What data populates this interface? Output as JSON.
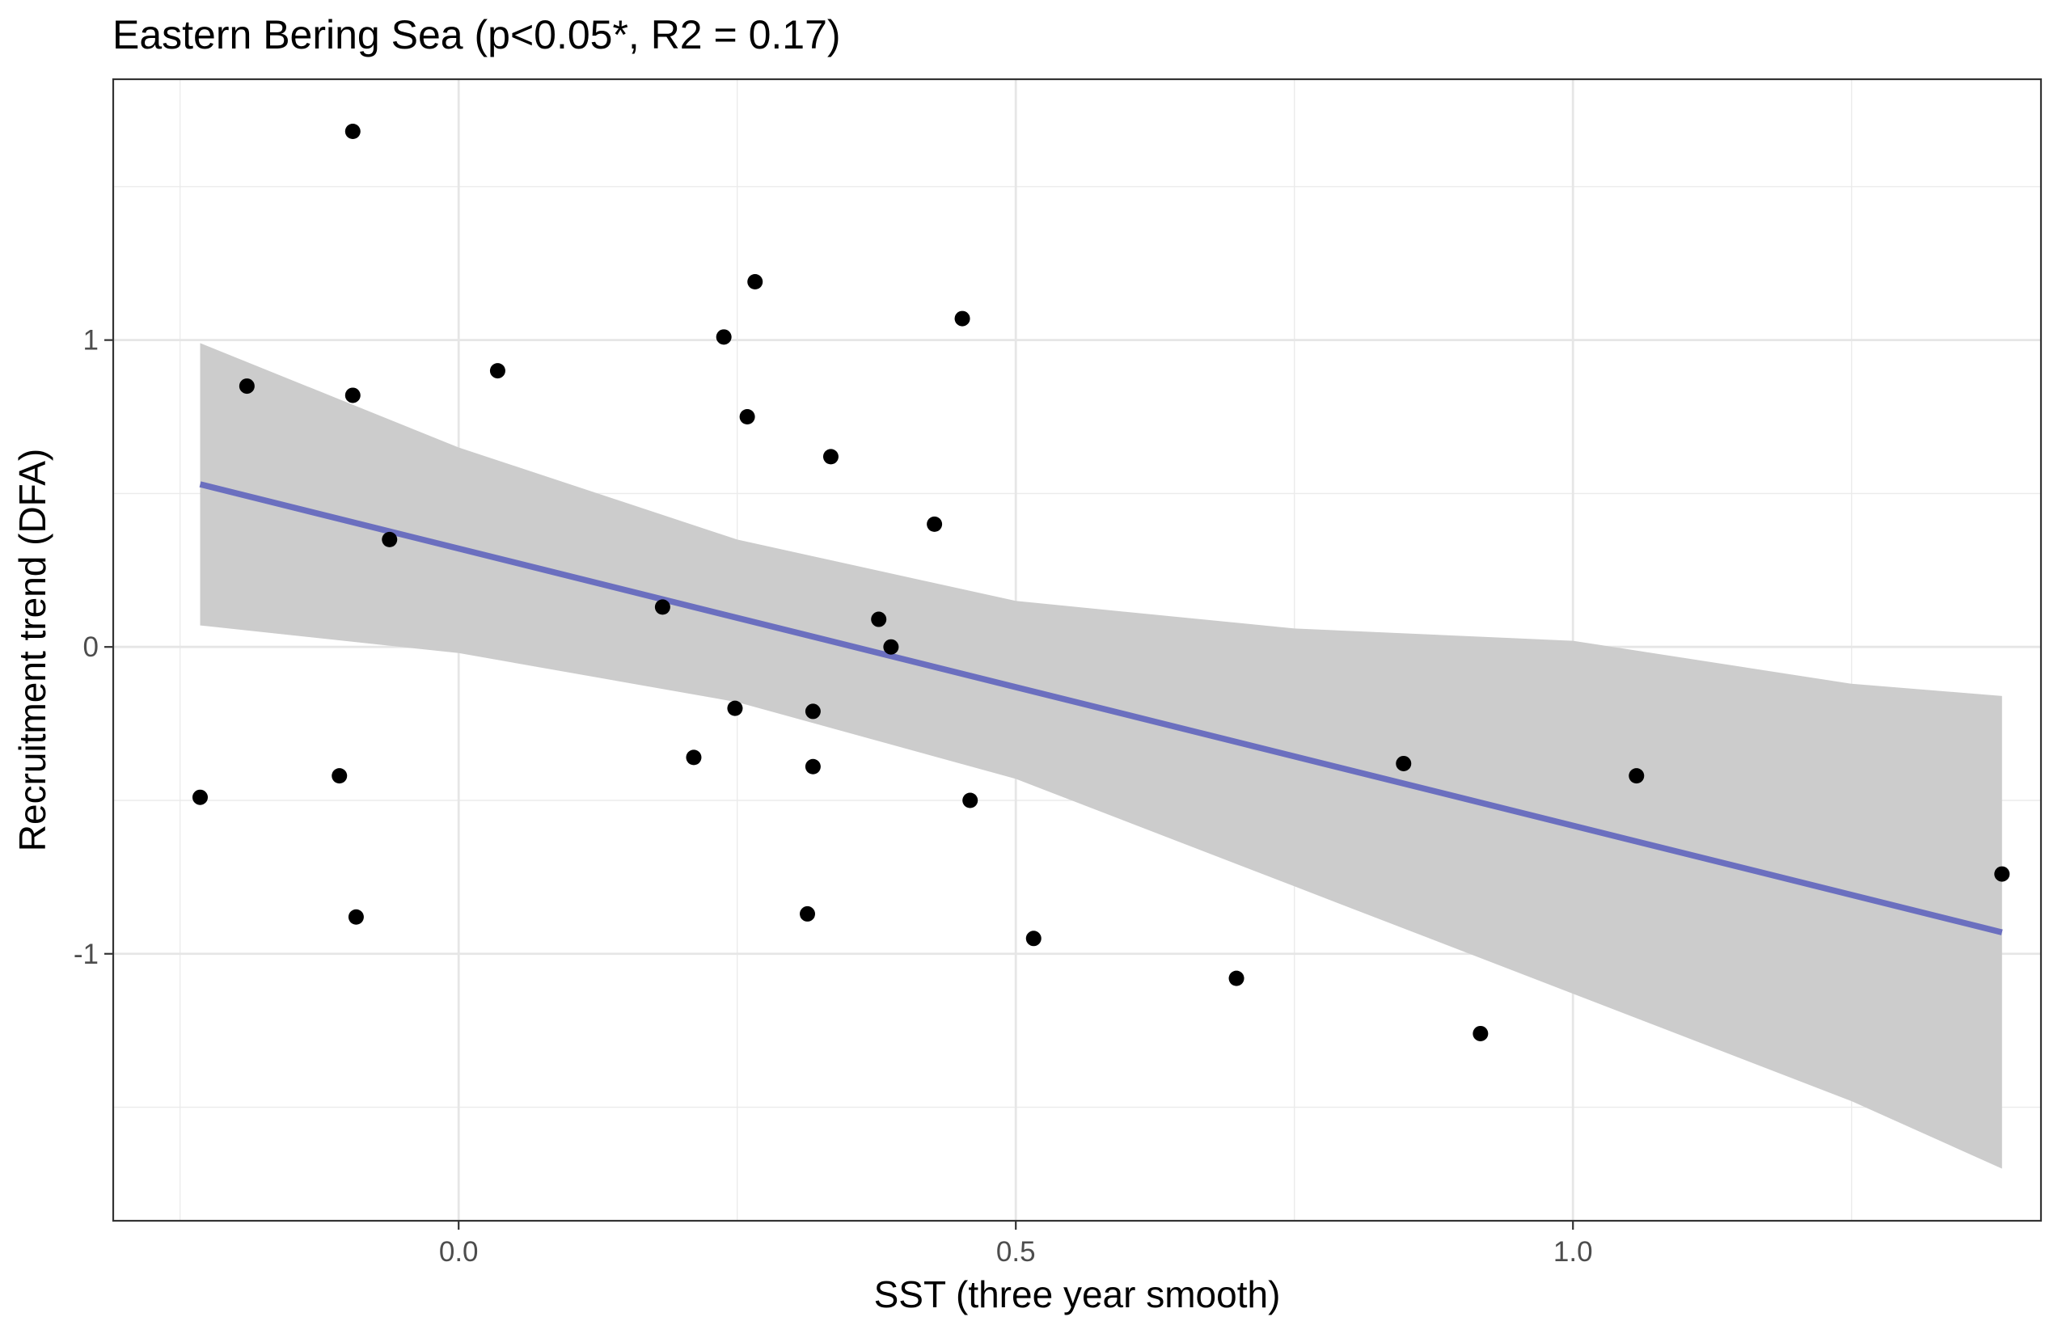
{
  "chart_data": {
    "type": "scatter",
    "title": "Eastern Bering Sea (p<0.05*, R2 = 0.17)",
    "xlabel": "SST (three year smooth)",
    "ylabel": "Recruitment trend (DFA)",
    "xlim": [
      -0.31,
      1.42
    ],
    "ylim": [
      -1.87,
      1.85
    ],
    "x_ticks": [
      0.0,
      0.5,
      1.0
    ],
    "x_tick_labels": [
      "0.0",
      "0.5",
      "1.0"
    ],
    "y_ticks": [
      -1,
      0,
      1
    ],
    "y_tick_labels": [
      "-1",
      "0",
      "1"
    ],
    "grid": true,
    "legend": "none",
    "points": [
      {
        "x": -0.095,
        "y": 1.68
      },
      {
        "x": -0.19,
        "y": 0.85
      },
      {
        "x": -0.095,
        "y": 0.82
      },
      {
        "x": 0.035,
        "y": 0.9
      },
      {
        "x": -0.062,
        "y": 0.35
      },
      {
        "x": -0.232,
        "y": -0.49
      },
      {
        "x": -0.107,
        "y": -0.42
      },
      {
        "x": -0.092,
        "y": -0.88
      },
      {
        "x": 0.183,
        "y": 0.13
      },
      {
        "x": 0.238,
        "y": 1.01
      },
      {
        "x": 0.266,
        "y": 1.19
      },
      {
        "x": 0.259,
        "y": 0.75
      },
      {
        "x": 0.334,
        "y": 0.62
      },
      {
        "x": 0.452,
        "y": 1.07
      },
      {
        "x": 0.427,
        "y": 0.4
      },
      {
        "x": 0.377,
        "y": 0.09
      },
      {
        "x": 0.388,
        "y": 0.0
      },
      {
        "x": 0.248,
        "y": -0.2
      },
      {
        "x": 0.318,
        "y": -0.21
      },
      {
        "x": 0.211,
        "y": -0.36
      },
      {
        "x": 0.318,
        "y": -0.39
      },
      {
        "x": 0.459,
        "y": -0.5
      },
      {
        "x": 0.313,
        "y": -0.87
      },
      {
        "x": 0.516,
        "y": -0.95
      },
      {
        "x": 0.698,
        "y": -1.08
      },
      {
        "x": 0.848,
        "y": -0.38
      },
      {
        "x": 0.917,
        "y": -1.26
      },
      {
        "x": 1.057,
        "y": -0.42
      },
      {
        "x": 1.385,
        "y": -0.74
      }
    ],
    "fit": {
      "type": "linear",
      "color": "#6b6fbf",
      "band_color": "#cccccc",
      "x": [
        -0.232,
        0.0,
        0.25,
        0.5,
        0.75,
        1.0,
        1.25,
        1.385
      ],
      "y": [
        0.53,
        0.32,
        0.09,
        -0.14,
        -0.36,
        -0.59,
        -0.81,
        -0.93
      ],
      "lower": [
        0.07,
        -0.02,
        -0.18,
        -0.43,
        -0.78,
        -1.13,
        -1.48,
        -1.7
      ],
      "upper": [
        0.99,
        0.65,
        0.35,
        0.15,
        0.06,
        0.02,
        -0.12,
        -0.16
      ]
    },
    "point_color": "#000000"
  }
}
